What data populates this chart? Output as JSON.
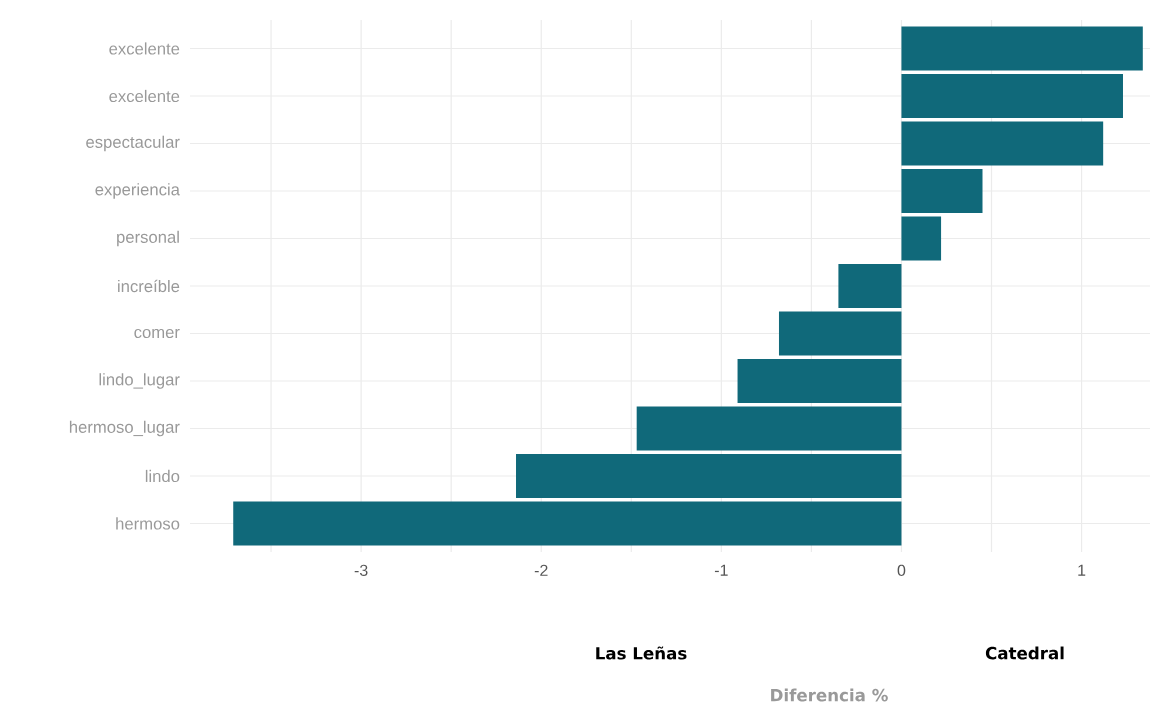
{
  "chart_data": {
    "type": "bar",
    "orientation": "horizontal",
    "categories": [
      "excelente",
      "excelente",
      "espectacular",
      "experiencia",
      "personal",
      "increíble",
      "comer",
      "lindo_lugar",
      "hermoso_lugar",
      "lindo",
      "hermoso"
    ],
    "values": [
      1.34,
      1.23,
      1.12,
      0.45,
      0.22,
      -0.35,
      -0.68,
      -0.91,
      -1.47,
      -2.14,
      -3.71
    ],
    "color": "#10697a",
    "xlim": [
      -3.95,
      1.38
    ],
    "xticks": [
      {
        "value": -3.5,
        "label": null
      },
      -3,
      {
        "value": -2.5,
        "label": null
      },
      -2,
      {
        "value": -1.5,
        "label": null
      },
      -1,
      {
        "value": -0.5,
        "label": null
      },
      0,
      {
        "value": 0.5,
        "label": null
      },
      1
    ],
    "grid": true,
    "annotations": [
      "Las Leñas",
      "Catedral",
      "Diferencia %"
    ]
  }
}
